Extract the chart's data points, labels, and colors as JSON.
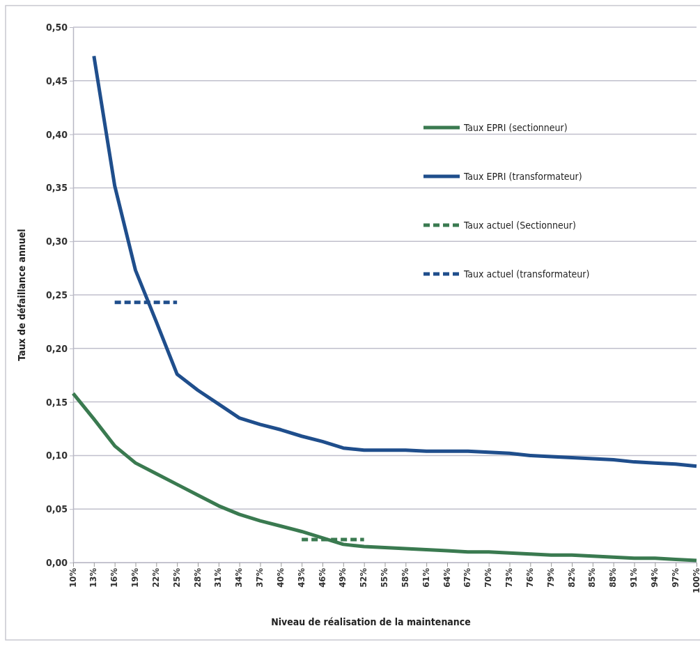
{
  "chart_data": {
    "type": "line",
    "xlabel": "Niveau de réalisation de la maintenance",
    "ylabel": "Taux de défaillance annuel",
    "categories": [
      "10%",
      "13%",
      "16%",
      "19%",
      "22%",
      "25%",
      "28%",
      "31%",
      "34%",
      "37%",
      "40%",
      "43%",
      "46%",
      "49%",
      "52%",
      "55%",
      "58%",
      "61%",
      "64%",
      "67%",
      "70%",
      "73%",
      "76%",
      "79%",
      "82%",
      "85%",
      "88%",
      "91%",
      "94%",
      "97%",
      "100%"
    ],
    "ylim": [
      0,
      0.5
    ],
    "yticks": [
      {
        "value": 0,
        "label": "0,00"
      },
      {
        "value": 0.05,
        "label": "0,05"
      },
      {
        "value": 0.1,
        "label": "0,10"
      },
      {
        "value": 0.15,
        "label": "0,15"
      },
      {
        "value": 0.2,
        "label": "0,20"
      },
      {
        "value": 0.25,
        "label": "0,25"
      },
      {
        "value": 0.3,
        "label": "0,30"
      },
      {
        "value": 0.35,
        "label": "0,35"
      },
      {
        "value": 0.4,
        "label": "0,40"
      },
      {
        "value": 0.45,
        "label": "0,45"
      },
      {
        "value": 0.5,
        "label": "0,50"
      }
    ],
    "grid": "y",
    "legend": "right",
    "marker": "none",
    "series": [
      {
        "name": "Taux EPRI (sectionneur)",
        "color": "#3a7a50",
        "line_style": "solid",
        "values": [
          0.158,
          0.134,
          0.109,
          0.093,
          0.083,
          0.073,
          0.063,
          0.053,
          0.045,
          0.039,
          0.034,
          0.029,
          0.023,
          0.017,
          0.015,
          0.014,
          0.013,
          0.012,
          0.011,
          0.01,
          0.01,
          0.009,
          0.008,
          0.007,
          0.007,
          0.006,
          0.005,
          0.004,
          0.004,
          0.003,
          0.002
        ]
      },
      {
        "name": "Taux EPRI (transformateur)",
        "color": "#1f4e8c",
        "line_style": "solid",
        "values": [
          null,
          0.473,
          0.352,
          0.273,
          0.225,
          0.176,
          0.161,
          0.148,
          0.135,
          0.129,
          0.124,
          0.118,
          0.113,
          0.107,
          0.105,
          0.105,
          0.105,
          0.104,
          0.104,
          0.104,
          0.103,
          0.102,
          0.1,
          0.099,
          0.098,
          0.097,
          0.096,
          0.094,
          0.093,
          0.092,
          0.09
        ]
      },
      {
        "name": "Taux actuel (Sectionneur)",
        "color": "#3a7a50",
        "line_style": "dashed",
        "values": [
          null,
          null,
          null,
          null,
          null,
          null,
          null,
          null,
          null,
          null,
          null,
          0.0215,
          0.0215,
          0.0215,
          0.0215,
          null,
          null,
          null,
          null,
          null,
          null,
          null,
          null,
          null,
          null,
          null,
          null,
          null,
          null,
          null,
          null
        ]
      },
      {
        "name": "Taux actuel (transformateur)",
        "color": "#1f4e8c",
        "line_style": "dashed",
        "values": [
          null,
          null,
          0.243,
          0.243,
          0.243,
          0.243,
          null,
          null,
          null,
          null,
          null,
          null,
          null,
          null,
          null,
          null,
          null,
          null,
          null,
          null,
          null,
          null,
          null,
          null,
          null,
          null,
          null,
          null,
          null,
          null,
          null
        ]
      }
    ]
  }
}
